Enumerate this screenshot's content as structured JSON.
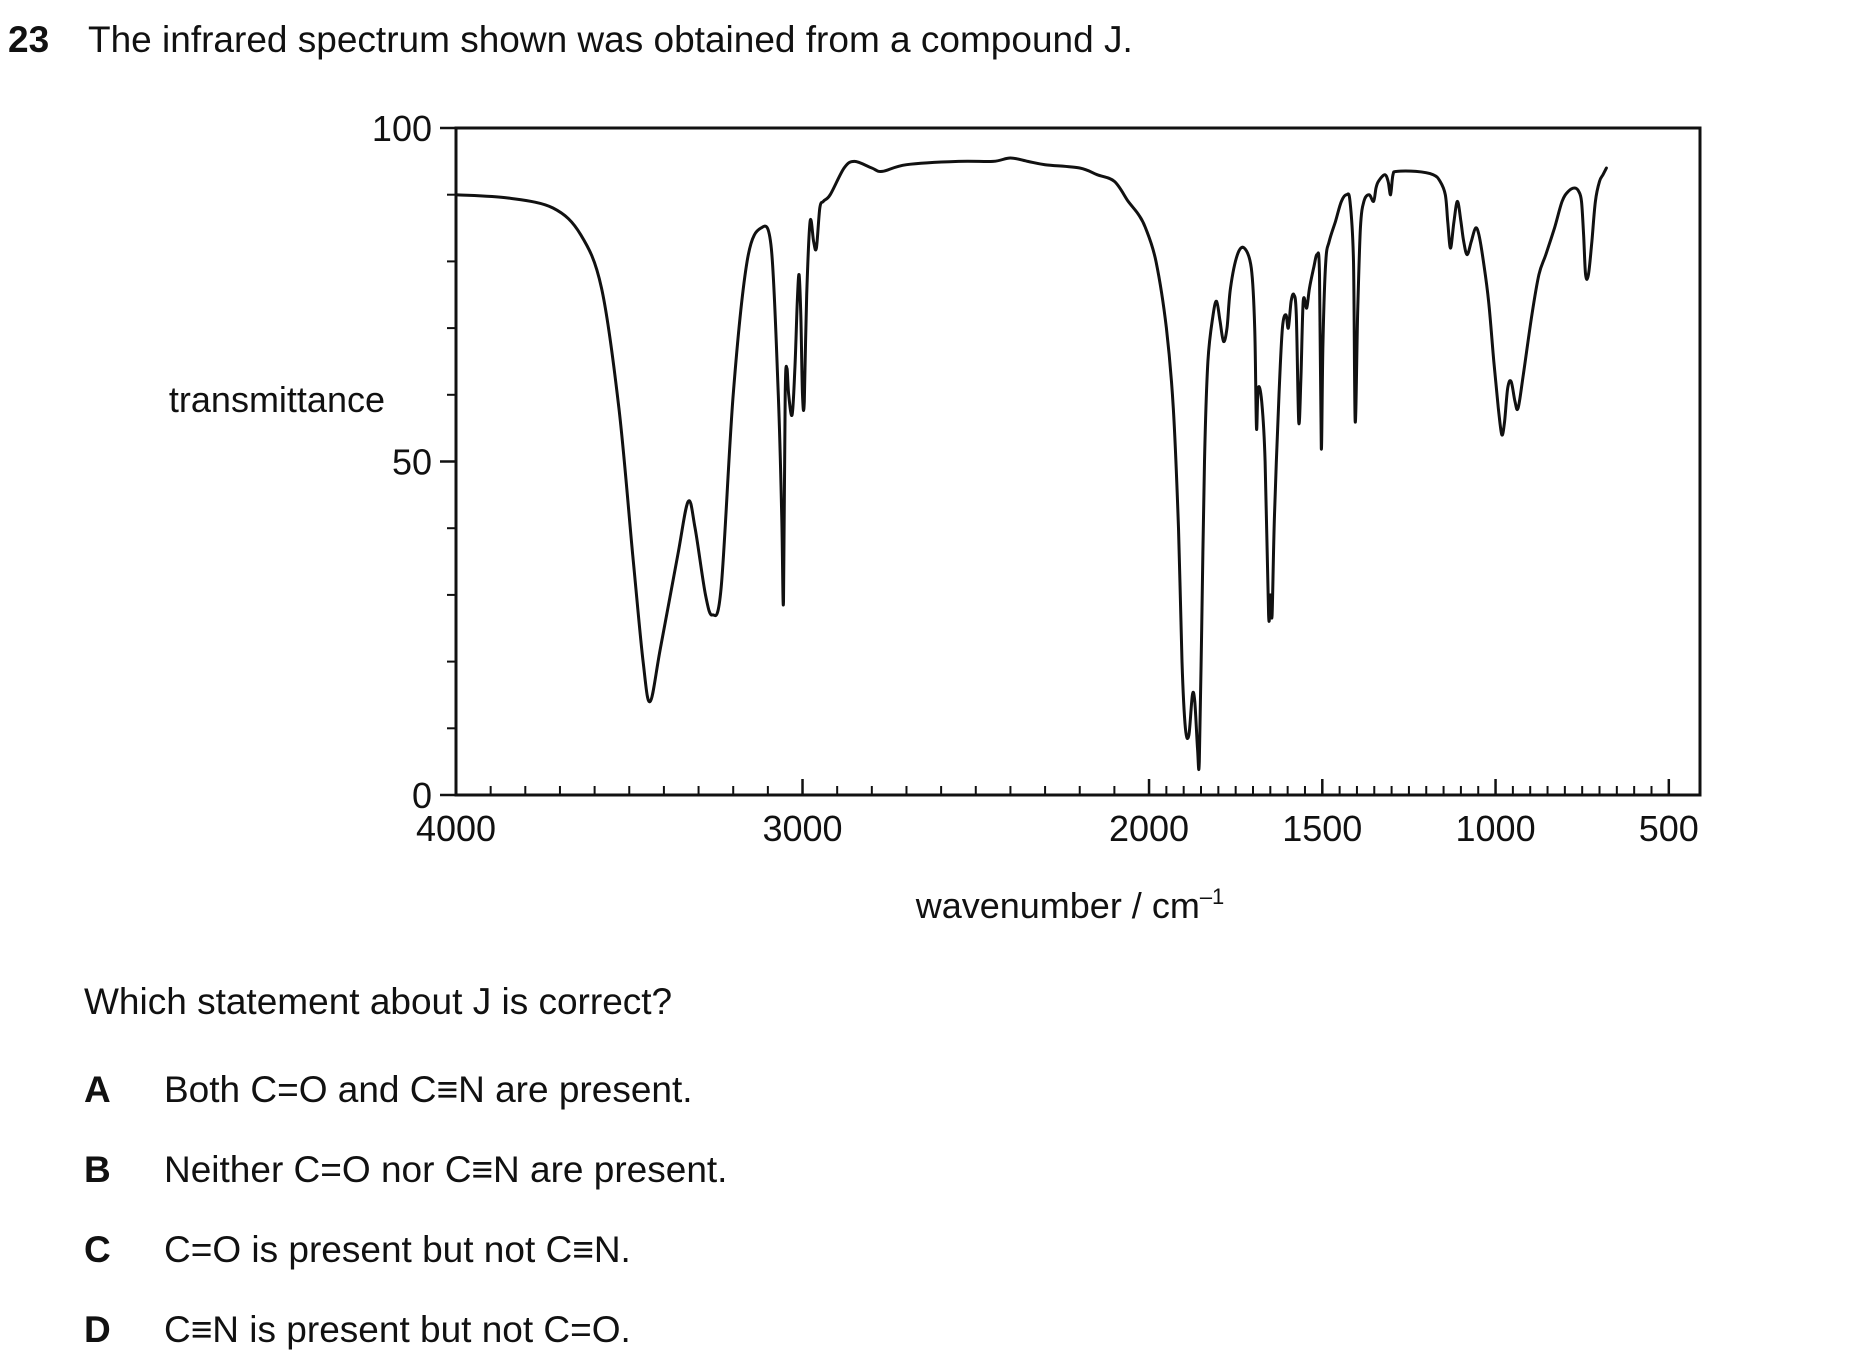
{
  "question": {
    "number": "23",
    "stem": "The infrared spectrum shown was obtained from a compound J.",
    "prompt": "Which statement about J is correct?",
    "options": [
      {
        "letter": "A",
        "text": "Both C=O and C≡N are present."
      },
      {
        "letter": "B",
        "text": "Neither C=O nor C≡N are present."
      },
      {
        "letter": "C",
        "text": "C=O is present but not C≡N."
      },
      {
        "letter": "D",
        "text": "C≡N is present but not C=O."
      }
    ]
  },
  "chart_data": {
    "type": "line",
    "title": "",
    "xlabel": "wavenumber / cm",
    "xlabel_superscript": "–1",
    "ylabel": "transmittance",
    "xlim": [
      4000,
      410
    ],
    "ylim": [
      0,
      100
    ],
    "x_ticks": [
      4000,
      3000,
      2000,
      1500,
      1000,
      500
    ],
    "x_tick_labels": [
      "4000",
      "3000",
      "2000",
      "1500",
      "1000",
      "500"
    ],
    "y_ticks": [
      0,
      50,
      100
    ],
    "y_tick_labels": [
      "0",
      "50",
      "100"
    ],
    "grid": false,
    "series": [
      {
        "points": [
          [
            4000,
            90
          ],
          [
            3850,
            89.5
          ],
          [
            3720,
            88
          ],
          [
            3640,
            84
          ],
          [
            3580,
            76
          ],
          [
            3530,
            58
          ],
          [
            3490,
            36
          ],
          [
            3460,
            20
          ],
          [
            3440,
            14
          ],
          [
            3410,
            22
          ],
          [
            3360,
            36
          ],
          [
            3330,
            44
          ],
          [
            3310,
            40
          ],
          [
            3280,
            30
          ],
          [
            3260,
            27
          ],
          [
            3235,
            31
          ],
          [
            3200,
            60
          ],
          [
            3160,
            80
          ],
          [
            3120,
            85
          ],
          [
            3090,
            82
          ],
          [
            3070,
            60
          ],
          [
            3060,
            42
          ],
          [
            3055,
            29
          ],
          [
            3050,
            60
          ],
          [
            3045,
            64
          ],
          [
            3040,
            60
          ],
          [
            3030,
            57
          ],
          [
            3022,
            64
          ],
          [
            3015,
            74
          ],
          [
            3010,
            78
          ],
          [
            3005,
            72
          ],
          [
            3000,
            60
          ],
          [
            2995,
            59
          ],
          [
            2988,
            75
          ],
          [
            2978,
            86
          ],
          [
            2968,
            83
          ],
          [
            2960,
            82
          ],
          [
            2950,
            88
          ],
          [
            2940,
            89
          ],
          [
            2920,
            90
          ],
          [
            2880,
            94
          ],
          [
            2850,
            95
          ],
          [
            2800,
            94
          ],
          [
            2770,
            93.5
          ],
          [
            2700,
            94.5
          ],
          [
            2550,
            95
          ],
          [
            2450,
            95
          ],
          [
            2400,
            95.5
          ],
          [
            2350,
            95
          ],
          [
            2300,
            94.5
          ],
          [
            2200,
            94
          ],
          [
            2150,
            93
          ],
          [
            2100,
            92
          ],
          [
            2060,
            89
          ],
          [
            2030,
            87
          ],
          [
            2010,
            85
          ],
          [
            1980,
            80
          ],
          [
            1950,
            70
          ],
          [
            1930,
            58
          ],
          [
            1915,
            40
          ],
          [
            1905,
            20
          ],
          [
            1895,
            10
          ],
          [
            1885,
            9
          ],
          [
            1875,
            15
          ],
          [
            1868,
            14
          ],
          [
            1860,
            7
          ],
          [
            1855,
            5
          ],
          [
            1848,
            25
          ],
          [
            1840,
            50
          ],
          [
            1830,
            65
          ],
          [
            1815,
            72
          ],
          [
            1805,
            74
          ],
          [
            1795,
            71
          ],
          [
            1785,
            68
          ],
          [
            1775,
            70
          ],
          [
            1765,
            76
          ],
          [
            1745,
            81
          ],
          [
            1725,
            82
          ],
          [
            1705,
            79
          ],
          [
            1695,
            70
          ],
          [
            1690,
            55
          ],
          [
            1685,
            61
          ],
          [
            1675,
            59
          ],
          [
            1665,
            50
          ],
          [
            1655,
            27
          ],
          [
            1650,
            30
          ],
          [
            1645,
            27
          ],
          [
            1638,
            42
          ],
          [
            1625,
            60
          ],
          [
            1615,
            70
          ],
          [
            1605,
            72
          ],
          [
            1598,
            70
          ],
          [
            1590,
            74
          ],
          [
            1582,
            75
          ],
          [
            1575,
            72
          ],
          [
            1568,
            56
          ],
          [
            1562,
            62
          ],
          [
            1555,
            74
          ],
          [
            1545,
            73
          ],
          [
            1537,
            76
          ],
          [
            1525,
            79
          ],
          [
            1515,
            81
          ],
          [
            1508,
            78
          ],
          [
            1503,
            52
          ],
          [
            1498,
            68
          ],
          [
            1490,
            80
          ],
          [
            1480,
            83
          ],
          [
            1462,
            86
          ],
          [
            1445,
            89
          ],
          [
            1430,
            90
          ],
          [
            1420,
            89
          ],
          [
            1410,
            80
          ],
          [
            1405,
            56
          ],
          [
            1398,
            72
          ],
          [
            1390,
            85
          ],
          [
            1380,
            89
          ],
          [
            1365,
            90
          ],
          [
            1352,
            89
          ],
          [
            1345,
            91
          ],
          [
            1338,
            92
          ],
          [
            1320,
            93
          ],
          [
            1310,
            92
          ],
          [
            1303,
            90
          ],
          [
            1296,
            93
          ],
          [
            1285,
            93.5
          ],
          [
            1230,
            93.5
          ],
          [
            1180,
            93
          ],
          [
            1160,
            92
          ],
          [
            1145,
            90
          ],
          [
            1138,
            86
          ],
          [
            1130,
            82
          ],
          [
            1120,
            86
          ],
          [
            1110,
            89
          ],
          [
            1100,
            86
          ],
          [
            1092,
            83
          ],
          [
            1082,
            81
          ],
          [
            1070,
            83
          ],
          [
            1058,
            85
          ],
          [
            1048,
            84
          ],
          [
            1035,
            80
          ],
          [
            1020,
            74
          ],
          [
            1005,
            65
          ],
          [
            992,
            58
          ],
          [
            982,
            54
          ],
          [
            974,
            56
          ],
          [
            965,
            61
          ],
          [
            955,
            62
          ],
          [
            944,
            59
          ],
          [
            935,
            58
          ],
          [
            920,
            63
          ],
          [
            895,
            72
          ],
          [
            875,
            78
          ],
          [
            855,
            81
          ],
          [
            830,
            85
          ],
          [
            808,
            89
          ],
          [
            790,
            90.5
          ],
          [
            772,
            91
          ],
          [
            760,
            90.5
          ],
          [
            752,
            89
          ],
          [
            746,
            84
          ],
          [
            740,
            78
          ],
          [
            732,
            78
          ],
          [
            722,
            83
          ],
          [
            712,
            89
          ],
          [
            700,
            92
          ],
          [
            690,
            93
          ],
          [
            680,
            94
          ]
        ]
      }
    ]
  }
}
